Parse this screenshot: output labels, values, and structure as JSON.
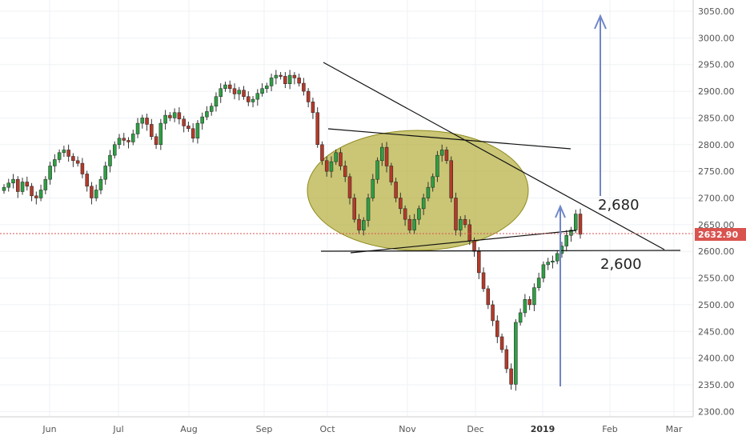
{
  "chart_data": {
    "type": "candlestick",
    "ylim": [
      2290,
      3080
    ],
    "y_ticks": [
      "3050.00",
      "3000.00",
      "2950.00",
      "2900.00",
      "2850.00",
      "2800.00",
      "2750.00",
      "2700.00",
      "2650.00",
      "2600.00",
      "2550.00",
      "2500.00",
      "2450.00",
      "2400.00",
      "2350.00",
      "2300.00"
    ],
    "x_ticks": [
      "Jun",
      "Jul",
      "Aug",
      "Sep",
      "Oct",
      "Nov",
      "Dec",
      "2019",
      "Feb",
      "Mar"
    ],
    "current_price": {
      "value": 2632.9,
      "label": "2632.90"
    },
    "annotations": [
      {
        "text": "2,680",
        "value": 2680
      },
      {
        "text": "2,600",
        "value": 2600
      }
    ],
    "series": [
      {
        "period": "Jun",
        "closes": [
          2720,
          2728,
          2735,
          2712,
          2730,
          2722,
          2704,
          2700,
          2715
        ]
      },
      {
        "period": "Jun-Jul",
        "closes": [
          2735,
          2760,
          2772,
          2785,
          2790,
          2778,
          2770,
          2765,
          2745
        ]
      },
      {
        "period": "Jul",
        "closes": [
          2722,
          2700,
          2715,
          2735,
          2760,
          2780,
          2800,
          2812,
          2808
        ]
      },
      {
        "period": "Jul-Aug",
        "closes": [
          2805,
          2820,
          2840,
          2850,
          2838,
          2815,
          2800,
          2840,
          2855
        ]
      },
      {
        "period": "Aug",
        "closes": [
          2850,
          2860,
          2848,
          2835,
          2830,
          2812,
          2840,
          2852,
          2862
        ]
      },
      {
        "period": "Aug-Sep",
        "closes": [
          2872,
          2890,
          2905,
          2912,
          2905,
          2895,
          2902,
          2890,
          2880
        ]
      },
      {
        "period": "Sep",
        "closes": [
          2885,
          2896,
          2905,
          2910,
          2925,
          2930,
          2928,
          2914,
          2930
        ]
      },
      {
        "period": "Oct",
        "closes": [
          2925,
          2915,
          2900,
          2880,
          2860,
          2800,
          2770,
          2750,
          2768
        ]
      },
      {
        "period": "Oct-Nov",
        "closes": [
          2785,
          2760,
          2740,
          2700,
          2660,
          2640,
          2658,
          2700,
          2735
        ]
      },
      {
        "period": "Nov",
        "closes": [
          2770,
          2795,
          2760,
          2730,
          2700,
          2680,
          2660,
          2640,
          2660
        ]
      },
      {
        "period": "Nov-Dec",
        "closes": [
          2680,
          2700,
          2720,
          2740,
          2780,
          2790,
          2770,
          2700,
          2640
        ]
      },
      {
        "period": "Dec",
        "closes": [
          2660,
          2650,
          2620,
          2600,
          2560,
          2530,
          2500,
          2470,
          2440
        ]
      },
      {
        "period": "Dec-Jan",
        "closes": [
          2416,
          2380,
          2351,
          2467,
          2485,
          2510,
          2500,
          2532,
          2550
        ]
      },
      {
        "period": "Jan",
        "closes": [
          2575,
          2580,
          2582,
          2596,
          2610,
          2630,
          2640,
          2670,
          2632
        ]
      }
    ]
  }
}
